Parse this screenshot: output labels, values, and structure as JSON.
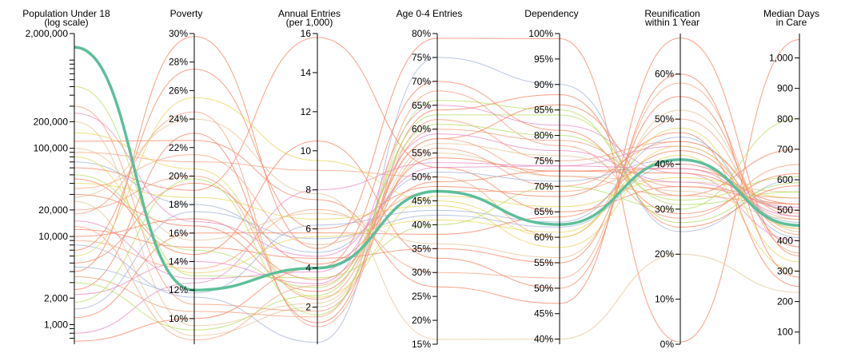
{
  "chart_data": {
    "type": "parallel-coordinates",
    "highlight_color": "#5dbf9a",
    "palette": [
      "#f4805e",
      "#f4805e",
      "#f4805e",
      "#f39a7a",
      "#a2b3d6",
      "#e78ac3",
      "#e6d65a",
      "#b4dc60",
      "#e5c494",
      "#f6a37f"
    ],
    "axes": [
      {
        "key": "pop18",
        "title_lines": [
          "Population Under 18",
          "(log scale)"
        ],
        "scale": "log",
        "domain": [
          600,
          2000000
        ],
        "ticks": [
          {
            "value": 1000,
            "label": "1,000"
          },
          {
            "value": 2000,
            "label": "2,000"
          },
          {
            "value": 10000,
            "label": "10,000"
          },
          {
            "value": 20000,
            "label": "20,000"
          },
          {
            "value": 100000,
            "label": "100,000"
          },
          {
            "value": 200000,
            "label": "200,000"
          },
          {
            "value": 2000000,
            "label": "2,000,000"
          }
        ],
        "minor_ticks": [
          700,
          800,
          900,
          3000,
          4000,
          5000,
          6000,
          7000,
          8000,
          9000,
          30000,
          40000,
          50000,
          60000,
          70000,
          80000,
          90000,
          300000,
          400000,
          500000,
          600000,
          700000,
          800000,
          900000,
          1000000
        ],
        "label_side": "left"
      },
      {
        "key": "poverty",
        "title_lines": [
          "Poverty"
        ],
        "scale": "linear",
        "domain": [
          8.2,
          30
        ],
        "ticks": [
          {
            "value": 10,
            "label": "10%"
          },
          {
            "value": 12,
            "label": "12%"
          },
          {
            "value": 14,
            "label": "14%"
          },
          {
            "value": 16,
            "label": "16%"
          },
          {
            "value": 18,
            "label": "18%"
          },
          {
            "value": 20,
            "label": "20%"
          },
          {
            "value": 22,
            "label": "22%"
          },
          {
            "value": 24,
            "label": "24%"
          },
          {
            "value": 26,
            "label": "26%"
          },
          {
            "value": 28,
            "label": "28%"
          },
          {
            "value": 30,
            "label": "30%"
          }
        ],
        "label_side": "left"
      },
      {
        "key": "entries",
        "title_lines": [
          "Annual Entries",
          "(per 1,000)"
        ],
        "scale": "linear",
        "domain": [
          0.1,
          16
        ],
        "ticks": [
          {
            "value": 2,
            "label": "2"
          },
          {
            "value": 4,
            "label": "4"
          },
          {
            "value": 6,
            "label": "6"
          },
          {
            "value": 8,
            "label": "8"
          },
          {
            "value": 10,
            "label": "10"
          },
          {
            "value": 12,
            "label": "12"
          },
          {
            "value": 14,
            "label": "14"
          },
          {
            "value": 16,
            "label": "16"
          }
        ],
        "label_side": "left"
      },
      {
        "key": "age04",
        "title_lines": [
          "Age 0-4 Entries"
        ],
        "scale": "linear",
        "domain": [
          15,
          80
        ],
        "ticks": [
          {
            "value": 15,
            "label": "15%"
          },
          {
            "value": 20,
            "label": "20%"
          },
          {
            "value": 25,
            "label": "25%"
          },
          {
            "value": 30,
            "label": "30%"
          },
          {
            "value": 35,
            "label": "35%"
          },
          {
            "value": 40,
            "label": "40%"
          },
          {
            "value": 45,
            "label": "45%"
          },
          {
            "value": 50,
            "label": "50%"
          },
          {
            "value": 55,
            "label": "55%"
          },
          {
            "value": 60,
            "label": "60%"
          },
          {
            "value": 65,
            "label": "65%"
          },
          {
            "value": 70,
            "label": "70%"
          },
          {
            "value": 75,
            "label": "75%"
          },
          {
            "value": 80,
            "label": "80%"
          }
        ],
        "label_side": "left"
      },
      {
        "key": "dependency",
        "title_lines": [
          "Dependency"
        ],
        "scale": "linear",
        "domain": [
          39,
          100
        ],
        "ticks": [
          {
            "value": 40,
            "label": "40%"
          },
          {
            "value": 45,
            "label": "45%"
          },
          {
            "value": 50,
            "label": "50%"
          },
          {
            "value": 55,
            "label": "55%"
          },
          {
            "value": 60,
            "label": "60%"
          },
          {
            "value": 65,
            "label": "65%"
          },
          {
            "value": 70,
            "label": "70%"
          },
          {
            "value": 75,
            "label": "75%"
          },
          {
            "value": 80,
            "label": "80%"
          },
          {
            "value": 85,
            "label": "85%"
          },
          {
            "value": 90,
            "label": "90%"
          },
          {
            "value": 95,
            "label": "95%"
          },
          {
            "value": 100,
            "label": "100%"
          }
        ],
        "label_side": "left"
      },
      {
        "key": "reunif",
        "title_lines": [
          "Reunification",
          "within 1 Year"
        ],
        "scale": "linear",
        "domain": [
          0,
          69
        ],
        "ticks": [
          {
            "value": 0,
            "label": "0%"
          },
          {
            "value": 10,
            "label": "10%"
          },
          {
            "value": 20,
            "label": "20%"
          },
          {
            "value": 30,
            "label": "30%"
          },
          {
            "value": 40,
            "label": "40%"
          },
          {
            "value": 50,
            "label": "50%"
          },
          {
            "value": 60,
            "label": "60%"
          }
        ],
        "label_side": "left"
      },
      {
        "key": "days",
        "title_lines": [
          "Median Days",
          "in Care"
        ],
        "scale": "linear",
        "domain": [
          60,
          1080
        ],
        "ticks": [
          {
            "value": 100,
            "label": "100"
          },
          {
            "value": 200,
            "label": "200"
          },
          {
            "value": 300,
            "label": "300"
          },
          {
            "value": 400,
            "label": "400"
          },
          {
            "value": 500,
            "label": "500"
          },
          {
            "value": 600,
            "label": "600"
          },
          {
            "value": 700,
            "label": "700"
          },
          {
            "value": 800,
            "label": "800"
          },
          {
            "value": 900,
            "label": "900"
          },
          {
            "value": 1000,
            "label": "1,000"
          }
        ],
        "label_side": "left"
      }
    ],
    "highlight": {
      "pop18": 1400000,
      "poverty": 12.0,
      "entries": 4.0,
      "age04": 47,
      "dependency": 62.5,
      "reunif": 41,
      "days": 450
    },
    "records": [
      {
        "pop18": 120000,
        "poverty": 22.5,
        "entries": 7.5,
        "age04": 27,
        "dependency": 47,
        "reunif": 68,
        "days": 350
      },
      {
        "pop18": 60000,
        "poverty": 19.0,
        "entries": 15.8,
        "age04": 52,
        "dependency": 65,
        "reunif": 35,
        "days": 520
      },
      {
        "pop18": 4000,
        "poverty": 29.8,
        "entries": 5.0,
        "age04": 79,
        "dependency": 99,
        "reunif": 0.5,
        "days": 1060
      },
      {
        "pop18": 18000,
        "poverty": 24.5,
        "entries": 1.0,
        "age04": 62,
        "dependency": 75,
        "reunif": 45,
        "days": 480
      },
      {
        "pop18": 8000,
        "poverty": 11.5,
        "entries": 0.2,
        "age04": 75,
        "dependency": 90,
        "reunif": 25,
        "days": 600
      },
      {
        "pop18": 2200,
        "poverty": 14.0,
        "entries": 3.2,
        "age04": 65,
        "dependency": 82,
        "reunif": 38,
        "days": 400
      },
      {
        "pop18": 40000,
        "poverty": 18.5,
        "entries": 6.5,
        "age04": 44,
        "dependency": 58,
        "reunif": 42,
        "days": 300
      },
      {
        "pop18": 500000,
        "poverty": 13.0,
        "entries": 3.5,
        "age04": 40,
        "dependency": 70,
        "reunif": 30,
        "days": 800
      },
      {
        "pop18": 200000,
        "poverty": 9.5,
        "entries": 2.2,
        "age04": 55,
        "dependency": 72,
        "reunif": 36,
        "days": 560
      },
      {
        "pop18": 90000,
        "poverty": 21.0,
        "entries": 9.0,
        "age04": 50,
        "dependency": 60,
        "reunif": 50,
        "days": 420
      },
      {
        "pop18": 30000,
        "poverty": 16.5,
        "entries": 2.8,
        "age04": 58,
        "dependency": 86,
        "reunif": 33,
        "days": 700
      },
      {
        "pop18": 12000,
        "poverty": 15.0,
        "entries": 4.5,
        "age04": 35,
        "dependency": 55,
        "reunif": 55,
        "days": 380
      },
      {
        "pop18": 7000,
        "poverty": 27.5,
        "entries": 6.0,
        "age04": 48,
        "dependency": 68,
        "reunif": 47,
        "days": 250
      },
      {
        "pop18": 3500,
        "poverty": 10.5,
        "entries": 1.5,
        "age04": 68,
        "dependency": 78,
        "reunif": 28,
        "days": 650
      },
      {
        "pop18": 1500,
        "poverty": 17.5,
        "entries": 5.5,
        "age04": 42,
        "dependency": 62,
        "reunif": 40,
        "days": 500
      },
      {
        "pop18": 800,
        "poverty": 12.5,
        "entries": 8.0,
        "age04": 53,
        "dependency": 74,
        "reunif": 44,
        "days": 450
      },
      {
        "pop18": 150000,
        "poverty": 20.5,
        "entries": 2.5,
        "age04": 46,
        "dependency": 66,
        "reunif": 37,
        "days": 540
      },
      {
        "pop18": 50000,
        "poverty": 14.8,
        "entries": 3.0,
        "age04": 61,
        "dependency": 80,
        "reunif": 32,
        "days": 610
      },
      {
        "pop18": 25000,
        "poverty": 8.8,
        "entries": 2.0,
        "age04": 57,
        "dependency": 76,
        "reunif": 34,
        "days": 470
      },
      {
        "pop18": 9000,
        "poverty": 13.5,
        "entries": 7.0,
        "age04": 30,
        "dependency": 52,
        "reunif": 58,
        "days": 360
      },
      {
        "pop18": 5000,
        "poverty": 19.5,
        "entries": 4.2,
        "age04": 49,
        "dependency": 73,
        "reunif": 39,
        "days": 520
      },
      {
        "pop18": 2500,
        "poverty": 23.0,
        "entries": 1.2,
        "age04": 64,
        "dependency": 88,
        "reunif": 26,
        "days": 580
      },
      {
        "pop18": 1200,
        "poverty": 16.0,
        "entries": 5.8,
        "age04": 38,
        "dependency": 64,
        "reunif": 43,
        "days": 440
      },
      {
        "pop18": 300000,
        "poverty": 11.0,
        "entries": 1.8,
        "age04": 56,
        "dependency": 70,
        "reunif": 45,
        "days": 490
      },
      {
        "pop18": 70000,
        "poverty": 18.0,
        "entries": 4.8,
        "age04": 51,
        "dependency": 71,
        "reunif": 41,
        "days": 460
      },
      {
        "pop18": 15000,
        "poverty": 12.8,
        "entries": 3.8,
        "age04": 59,
        "dependency": 77,
        "reunif": 36,
        "days": 510
      },
      {
        "pop18": 6000,
        "poverty": 25.5,
        "entries": 9.5,
        "age04": 45,
        "dependency": 60,
        "reunif": 48,
        "days": 330
      },
      {
        "pop18": 3000,
        "poverty": 9.2,
        "entries": 2.6,
        "age04": 63,
        "dependency": 84,
        "reunif": 31,
        "days": 560
      },
      {
        "pop18": 100000,
        "poverty": 15.5,
        "entries": 6.8,
        "age04": 36,
        "dependency": 56,
        "reunif": 52,
        "days": 430
      },
      {
        "pop18": 35000,
        "poverty": 21.5,
        "entries": 5.2,
        "age04": 47,
        "dependency": 69,
        "reunif": 40,
        "days": 470
      },
      {
        "pop18": 10000,
        "poverty": 17.0,
        "entries": 3.4,
        "age04": 54,
        "dependency": 73,
        "reunif": 38,
        "days": 500
      },
      {
        "pop18": 650,
        "poverty": 10.0,
        "entries": 4.0,
        "age04": 70,
        "dependency": 81,
        "reunif": 29,
        "days": 620
      },
      {
        "pop18": 45000,
        "poverty": 14.5,
        "entries": 10.5,
        "age04": 33,
        "dependency": 50,
        "reunif": 60,
        "days": 280
      },
      {
        "pop18": 20000,
        "poverty": 20.0,
        "entries": 2.4,
        "age04": 60,
        "dependency": 79,
        "reunif": 35,
        "days": 540
      },
      {
        "pop18": 4500,
        "poverty": 11.8,
        "entries": 6.2,
        "age04": 43,
        "dependency": 63,
        "reunif": 46,
        "days": 410
      },
      {
        "pop18": 250000,
        "poverty": 16.8,
        "entries": 4.6,
        "age04": 52,
        "dependency": 74,
        "reunif": 39,
        "days": 480
      },
      {
        "pop18": 80000,
        "poverty": 13.2,
        "entries": 5.6,
        "age04": 41,
        "dependency": 61,
        "reunif": 44,
        "days": 440
      },
      {
        "pop18": 1800,
        "poverty": 19.8,
        "entries": 1.6,
        "age04": 66,
        "dependency": 85,
        "reunif": 27,
        "days": 590
      },
      {
        "pop18": 28000,
        "poverty": 24.0,
        "entries": 7.8,
        "age04": 16,
        "dependency": 40,
        "reunif": 20,
        "days": 230
      },
      {
        "pop18": 13000,
        "poverty": 8.5,
        "entries": 3.1,
        "age04": 58,
        "dependency": 72,
        "reunif": 33,
        "days": 520
      }
    ]
  }
}
